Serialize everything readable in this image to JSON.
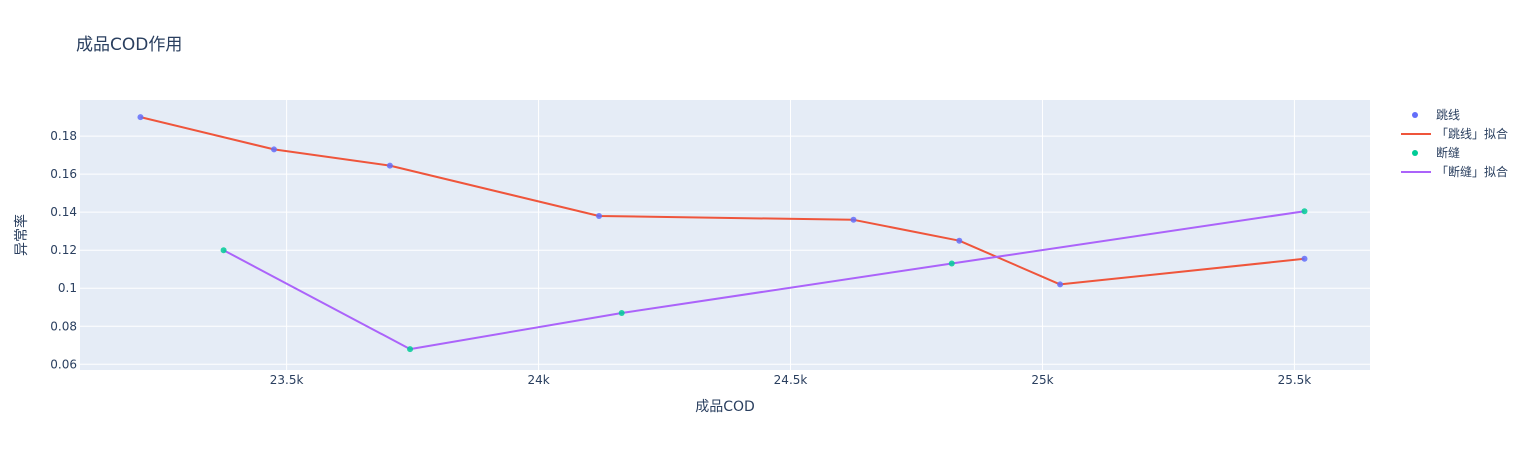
{
  "chart_data": {
    "type": "scatter",
    "title": "成品COD作用",
    "xlabel": "成品COD",
    "ylabel": "异常率",
    "xlim": [
      23090,
      25650
    ],
    "ylim": [
      0.057,
      0.199
    ],
    "x_ticks": [
      23500,
      24000,
      24500,
      25000,
      25500
    ],
    "x_tick_labels": [
      "23.5k",
      "24k",
      "24.5k",
      "25k",
      "25.5k"
    ],
    "y_ticks": [
      0.06,
      0.08,
      0.1,
      0.12,
      0.14,
      0.16,
      0.18
    ],
    "y_tick_labels": [
      "0.06",
      "0.08",
      "0.1",
      "0.12",
      "0.14",
      "0.16",
      "0.18"
    ],
    "grid": true,
    "legend_position": "top-right",
    "series": [
      {
        "name": "跳线",
        "mode": "markers",
        "color": "#636efa",
        "x": [
          23210,
          23475,
          23705,
          24120,
          24625,
          24835,
          25035,
          25520
        ],
        "y": [
          0.19,
          0.173,
          0.1645,
          0.138,
          0.136,
          0.125,
          0.102,
          0.1155
        ]
      },
      {
        "name": "「跳线」拟合",
        "mode": "lines",
        "color": "#ef553b",
        "x": [
          23210,
          23475,
          23705,
          24120,
          24625,
          24835,
          25035,
          25520
        ],
        "y": [
          0.19,
          0.173,
          0.1645,
          0.138,
          0.136,
          0.125,
          0.102,
          0.1155
        ]
      },
      {
        "name": "断缝",
        "mode": "markers",
        "color": "#00cc96",
        "x": [
          23375,
          23745,
          24165,
          24820,
          25520
        ],
        "y": [
          0.12,
          0.068,
          0.087,
          0.113,
          0.1405
        ]
      },
      {
        "name": "「断缝」拟合",
        "mode": "lines",
        "color": "#ab63fa",
        "x": [
          23375,
          23745,
          24165,
          24820,
          25520
        ],
        "y": [
          0.12,
          0.068,
          0.087,
          0.113,
          0.1405
        ]
      }
    ]
  }
}
